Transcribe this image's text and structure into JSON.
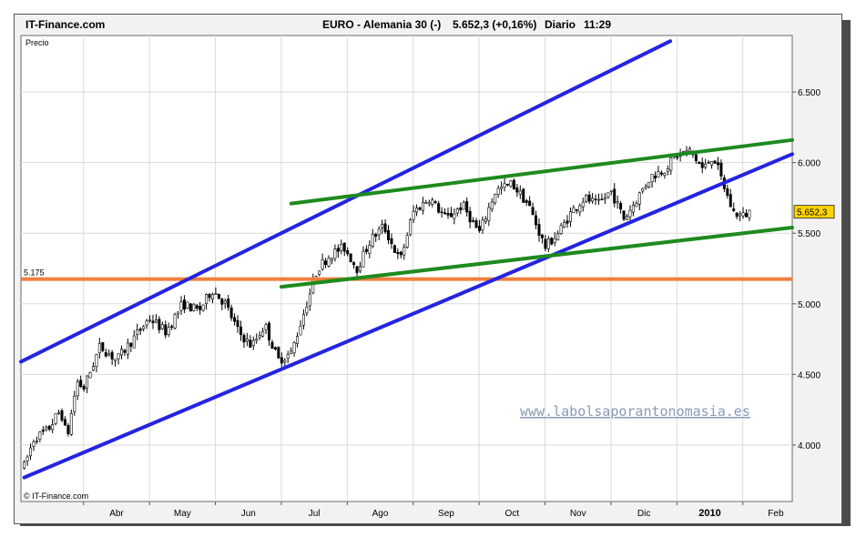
{
  "header": {
    "site": "IT-Finance.com",
    "instrument": "EURO - Alemania 30 (-)",
    "quote": "5.652,3 (+0,16%)",
    "period": "Diario",
    "time": "11:29"
  },
  "chart_data": {
    "type": "candlestick",
    "panel_label": "Precio",
    "y_ticks": [
      4000,
      4500,
      5000,
      5500,
      6000,
      6500
    ],
    "y_tick_labels": [
      "4.000",
      "4.500",
      "5.000",
      "5.500",
      "6.000",
      "6.500"
    ],
    "ylim": [
      3600,
      6900
    ],
    "x_labels": [
      "Abr",
      "May",
      "Jun",
      "Jul",
      "Ago",
      "Sep",
      "Oct",
      "Nov",
      "Dic",
      "2010",
      "Feb"
    ],
    "x_label_months": [
      0.5,
      1.5,
      2.5,
      3.5,
      4.5,
      5.5,
      6.5,
      7.5,
      8.5,
      9.5,
      10.5
    ],
    "x_gridlines_month": [
      0,
      1,
      2,
      3,
      4,
      5,
      6,
      7,
      8,
      9,
      10
    ],
    "xlim_months": [
      -0.95,
      10.75
    ],
    "grid": true,
    "last_price_label": "5.652,3",
    "horizontal_line": {
      "value": 5175,
      "label": "5.175",
      "color": "#f07f3c"
    },
    "trendlines": [
      {
        "color": "#2424e0",
        "x": [
          -0.95,
          8.9
        ],
        "y": [
          4590,
          6860
        ]
      },
      {
        "color": "#2424e0",
        "x": [
          -0.9,
          10.75
        ],
        "y": [
          3770,
          6060
        ]
      },
      {
        "color": "#1e8a1e",
        "x": [
          3.15,
          10.75
        ],
        "y": [
          5710,
          6160
        ]
      },
      {
        "color": "#1e8a1e",
        "x": [
          3.0,
          10.75
        ],
        "y": [
          5120,
          5540
        ]
      }
    ],
    "price_path": {
      "months": [
        -0.9,
        -0.75,
        -0.55,
        -0.35,
        -0.25,
        -0.1,
        0.0,
        0.25,
        0.5,
        0.75,
        1.0,
        1.25,
        1.5,
        1.75,
        1.95,
        2.15,
        2.35,
        2.55,
        2.75,
        2.95,
        3.15,
        3.35,
        3.55,
        3.75,
        3.95,
        4.15,
        4.35,
        4.55,
        4.8,
        5.0,
        5.25,
        5.5,
        5.75,
        6.0,
        6.25,
        6.5,
        6.75,
        7.0,
        7.2,
        7.4,
        7.6,
        7.8,
        8.0,
        8.2,
        8.4,
        8.6,
        8.8,
        9.0,
        9.2,
        9.4,
        9.55,
        9.7,
        9.85,
        10.0,
        10.1
      ],
      "values": [
        3850,
        4050,
        4100,
        4250,
        4050,
        4450,
        4400,
        4700,
        4600,
        4750,
        4900,
        4800,
        5000,
        4950,
        5100,
        5000,
        4800,
        4700,
        4850,
        4600,
        4650,
        4950,
        5250,
        5350,
        5400,
        5250,
        5450,
        5550,
        5300,
        5650,
        5750,
        5600,
        5700,
        5500,
        5800,
        5850,
        5700,
        5400,
        5500,
        5650,
        5750,
        5700,
        5800,
        5600,
        5750,
        5900,
        5950,
        6050,
        6080,
        5950,
        6050,
        5850,
        5650,
        5620,
        5652
      ]
    }
  },
  "watermark": "www.labolsaporantonomasia.es",
  "copyright": "© IT-Finance.com"
}
